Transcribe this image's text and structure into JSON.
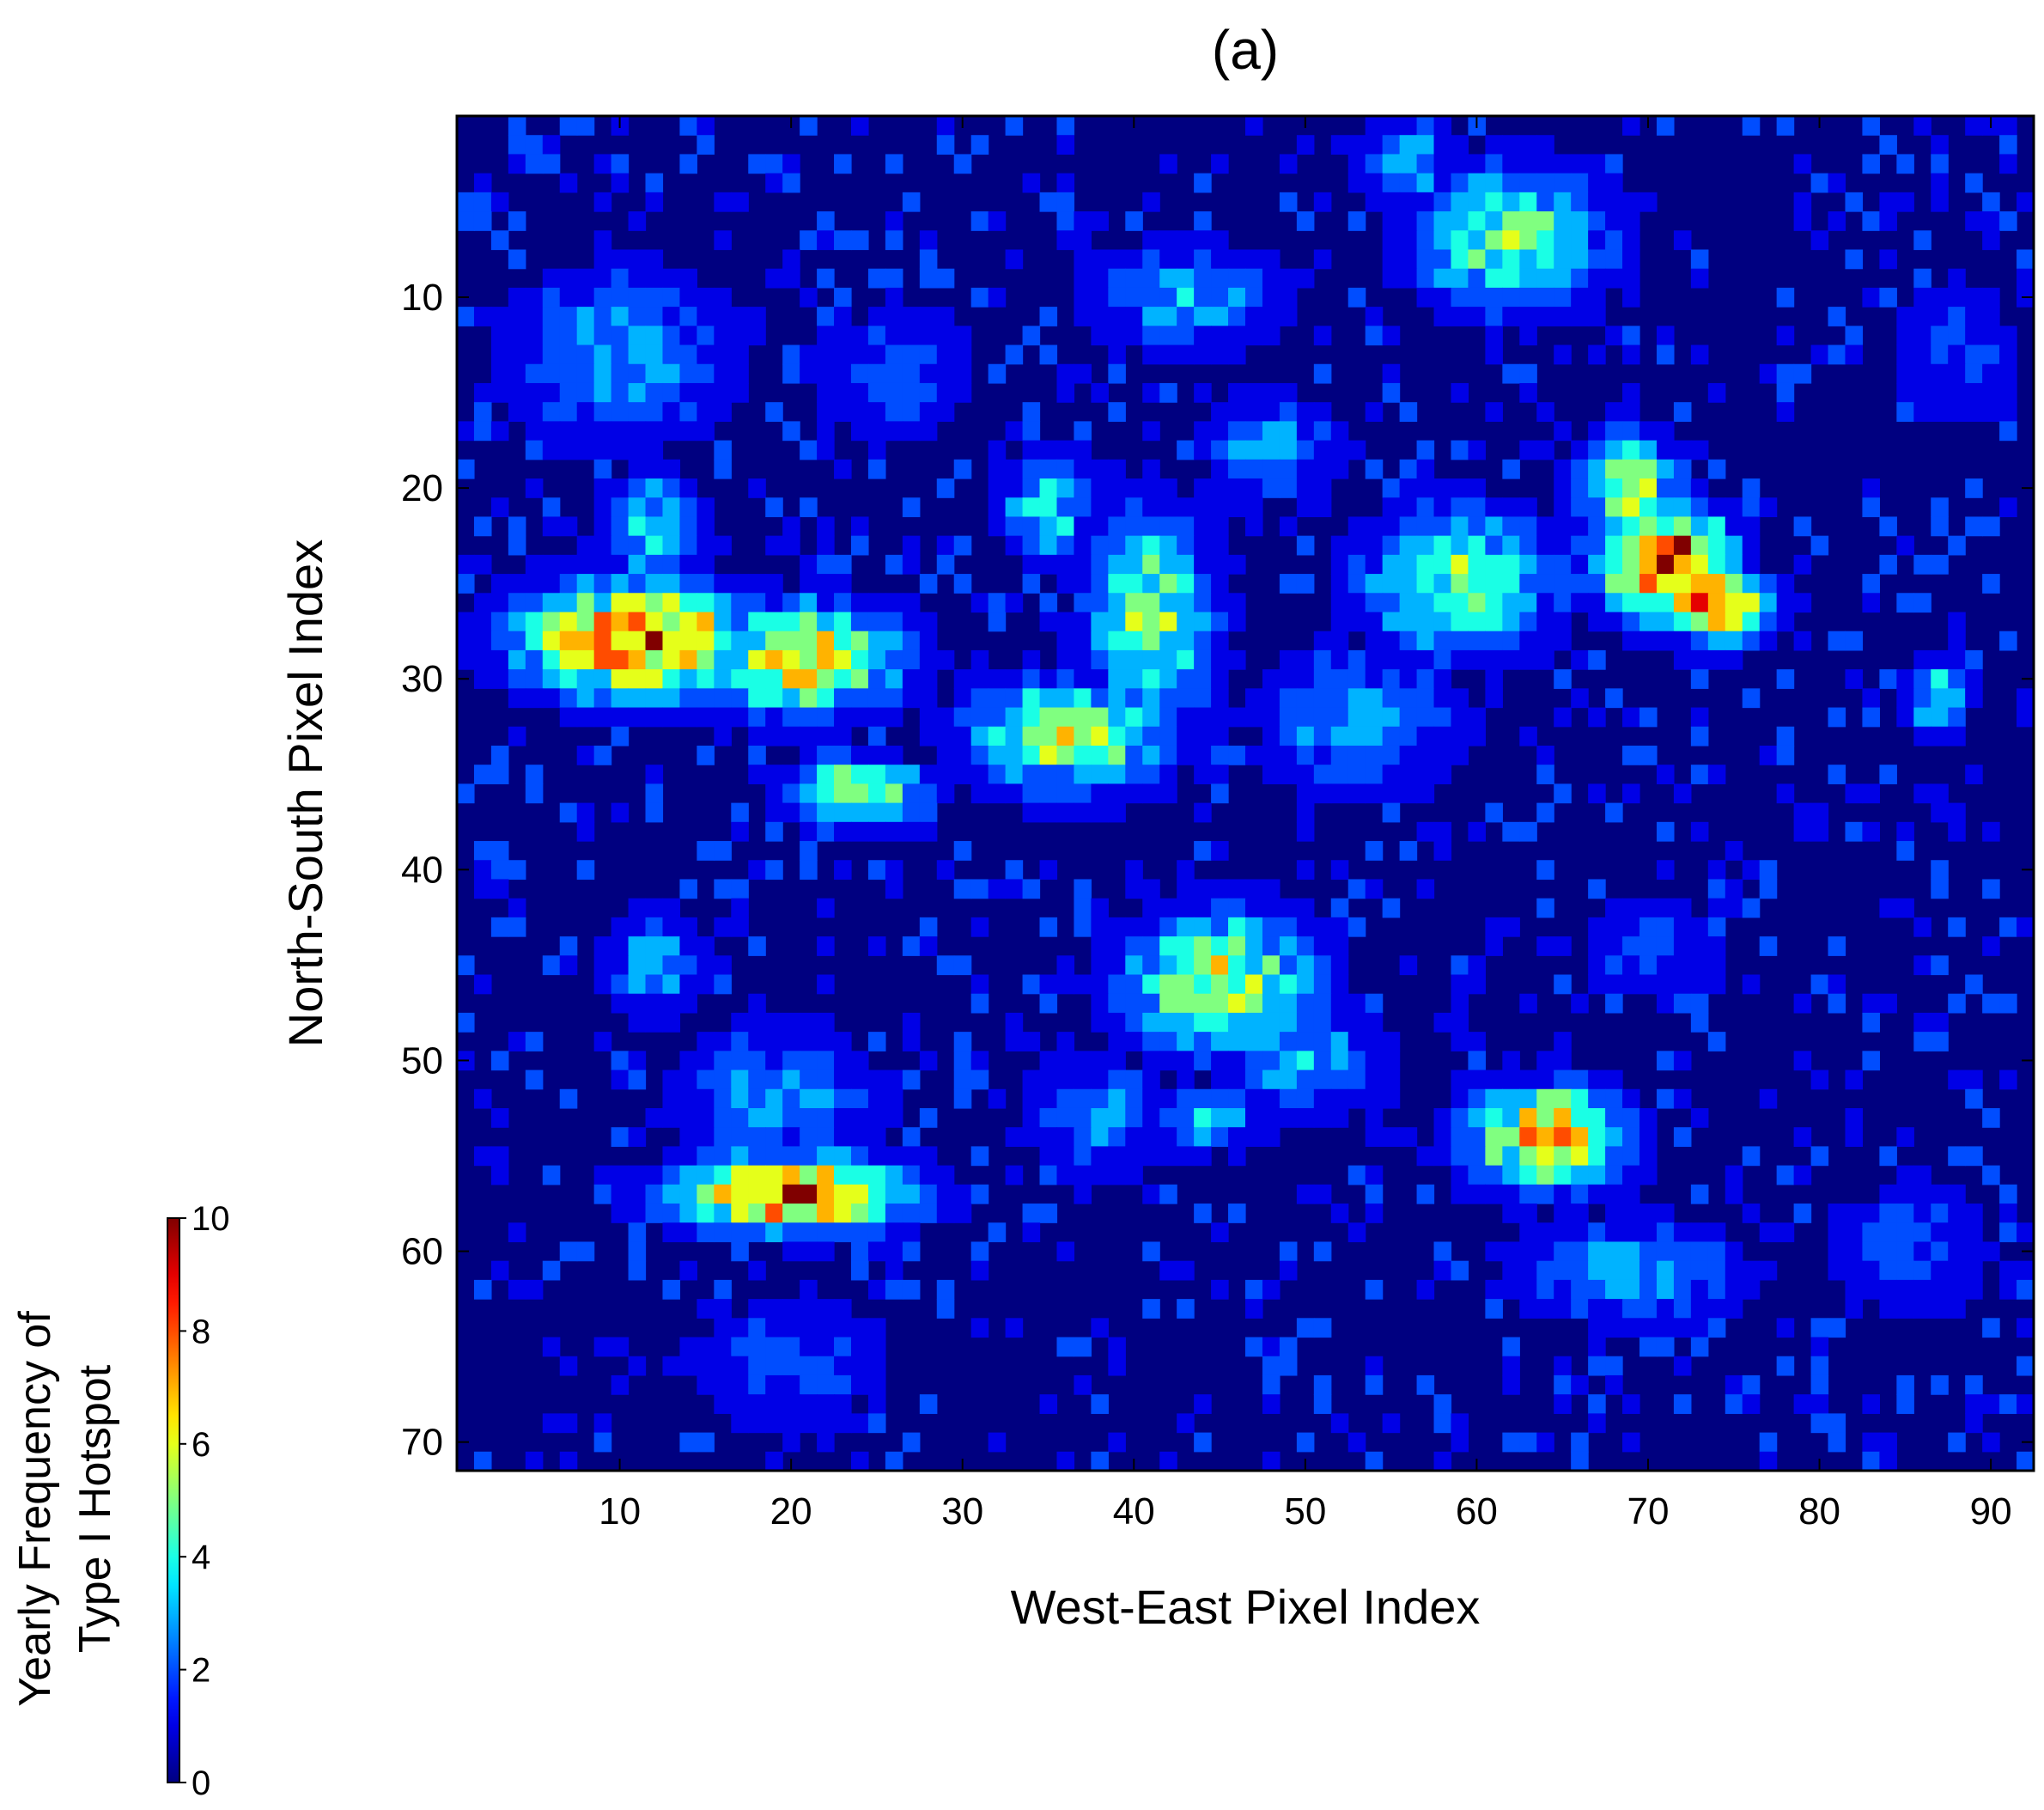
{
  "chart_data": {
    "type": "heatmap",
    "title": "(a)",
    "xlabel": "West-East Pixel Index",
    "ylabel": "North-South Pixel Index",
    "x_range": [
      1,
      92
    ],
    "y_range": [
      1,
      71
    ],
    "y_direction": "downward",
    "x_ticks": [
      10,
      20,
      30,
      40,
      50,
      60,
      70,
      80,
      90
    ],
    "y_ticks": [
      10,
      20,
      30,
      40,
      50,
      60,
      70
    ],
    "colormap": "jet",
    "background_value": 0,
    "colorbar": {
      "title_lines": [
        "Yearly Frequency of",
        "Type I Hotspot"
      ],
      "range": [
        0,
        10
      ],
      "ticks": [
        0,
        2,
        4,
        6,
        8,
        10
      ],
      "placement": "lower-left"
    },
    "regions": [
      {
        "cx": 10,
        "cy": 13,
        "rx": 7,
        "ry": 5,
        "peak": 3
      },
      {
        "cx": 11,
        "cy": 28,
        "rx": 7,
        "ry": 3,
        "peak": 9
      },
      {
        "cx": 12,
        "cy": 22,
        "rx": 3,
        "ry": 3,
        "peak": 4
      },
      {
        "cx": 21,
        "cy": 29,
        "rx": 6,
        "ry": 3,
        "peak": 7
      },
      {
        "cx": 24,
        "cy": 36,
        "rx": 4,
        "ry": 2,
        "peak": 6
      },
      {
        "cx": 12,
        "cy": 45,
        "rx": 3,
        "ry": 3,
        "peak": 3
      },
      {
        "cx": 19,
        "cy": 52,
        "rx": 6,
        "ry": 4,
        "peak": 3
      },
      {
        "cx": 20,
        "cy": 57,
        "rx": 7,
        "ry": 2,
        "peak": 9
      },
      {
        "cx": 36,
        "cy": 33,
        "rx": 6,
        "ry": 3,
        "peak": 6
      },
      {
        "cx": 41,
        "cy": 27,
        "rx": 4,
        "ry": 6,
        "peak": 5
      },
      {
        "cx": 35,
        "cy": 21,
        "rx": 3,
        "ry": 3,
        "peak": 4
      },
      {
        "cx": 43,
        "cy": 10,
        "rx": 6,
        "ry": 3,
        "peak": 3
      },
      {
        "cx": 48,
        "cy": 18,
        "rx": 4,
        "ry": 3,
        "peak": 3
      },
      {
        "cx": 45,
        "cy": 46,
        "rx": 6,
        "ry": 4,
        "peak": 6
      },
      {
        "cx": 50,
        "cy": 50,
        "rx": 5,
        "ry": 3,
        "peak": 3
      },
      {
        "cx": 44,
        "cy": 53,
        "rx": 4,
        "ry": 2,
        "peak": 3
      },
      {
        "cx": 38,
        "cy": 53,
        "rx": 4,
        "ry": 3,
        "peak": 3
      },
      {
        "cx": 59,
        "cy": 25,
        "rx": 6,
        "ry": 4,
        "peak": 5
      },
      {
        "cx": 53,
        "cy": 32,
        "rx": 6,
        "ry": 4,
        "peak": 3
      },
      {
        "cx": 62,
        "cy": 7,
        "rx": 6,
        "ry": 4,
        "peak": 5
      },
      {
        "cx": 56,
        "cy": 3,
        "rx": 3,
        "ry": 3,
        "peak": 3
      },
      {
        "cx": 69,
        "cy": 20,
        "rx": 3,
        "ry": 3,
        "peak": 6
      },
      {
        "cx": 71,
        "cy": 24,
        "rx": 4,
        "ry": 3,
        "peak": 10
      },
      {
        "cx": 74,
        "cy": 26,
        "rx": 3,
        "ry": 2,
        "peak": 9
      },
      {
        "cx": 64,
        "cy": 54,
        "rx": 5,
        "ry": 3,
        "peak": 7
      },
      {
        "cx": 69,
        "cy": 61,
        "rx": 7,
        "ry": 3,
        "peak": 3
      },
      {
        "cx": 87,
        "cy": 31,
        "rx": 2,
        "ry": 2,
        "peak": 4
      },
      {
        "cx": 70,
        "cy": 44,
        "rx": 4,
        "ry": 3,
        "peak": 2
      },
      {
        "cx": 88,
        "cy": 13,
        "rx": 4,
        "ry": 4,
        "peak": 2
      },
      {
        "cx": 20,
        "cy": 66,
        "rx": 6,
        "ry": 4,
        "peak": 2
      },
      {
        "cx": 85,
        "cy": 60,
        "rx": 5,
        "ry": 4,
        "peak": 2
      },
      {
        "cx": 26,
        "cy": 14,
        "rx": 5,
        "ry": 4,
        "peak": 2
      }
    ]
  }
}
